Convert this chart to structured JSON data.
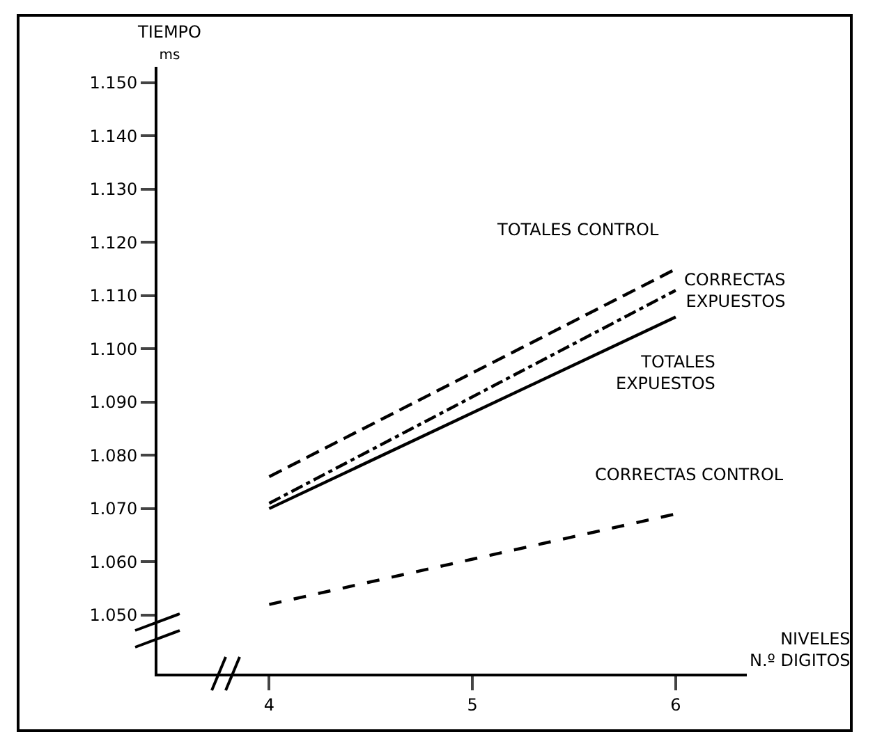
{
  "chart_data": {
    "type": "line",
    "xlabel": "NIVELES N.º DIGITOS",
    "ylabel": "TIEMPO ms",
    "x": [
      4,
      6
    ],
    "series": [
      {
        "name": "TOTALES CONTROL",
        "color": "#000000",
        "values": [
          1076,
          1115
        ],
        "line_style": "longdash"
      },
      {
        "name": "CORRECTAS EXPUESTOS",
        "color": "#000000",
        "values": [
          1071,
          1111
        ],
        "line_style": "dashdot"
      },
      {
        "name": "TOTALES EXPUESTOS",
        "color": "#000000",
        "values": [
          1070,
          1106
        ],
        "line_style": "solid"
      },
      {
        "name": "CORRECTAS CONTROL",
        "color": "#000000",
        "values": [
          1052,
          1069
        ],
        "line_style": "dashed"
      }
    ],
    "xlim": [
      3.45,
      6.35
    ],
    "xticks": [
      4,
      5,
      6
    ],
    "ylim": [
      1039,
      1153
    ],
    "yticks": [
      {
        "value": 1050,
        "label": "1.050"
      },
      {
        "value": 1060,
        "label": "1.060"
      },
      {
        "value": 1070,
        "label": "1.070"
      },
      {
        "value": 1080,
        "label": "1.080"
      },
      {
        "value": 1090,
        "label": "1.090"
      },
      {
        "value": 1100,
        "label": "1.100"
      },
      {
        "value": 1110,
        "label": "1.110"
      },
      {
        "value": 1120,
        "label": "1.120"
      },
      {
        "value": 1130,
        "label": "1.130"
      },
      {
        "value": 1140,
        "label": "1.140"
      },
      {
        "value": 1150,
        "label": "1.150"
      }
    ],
    "grid": false,
    "legend": false,
    "marker": "none"
  }
}
